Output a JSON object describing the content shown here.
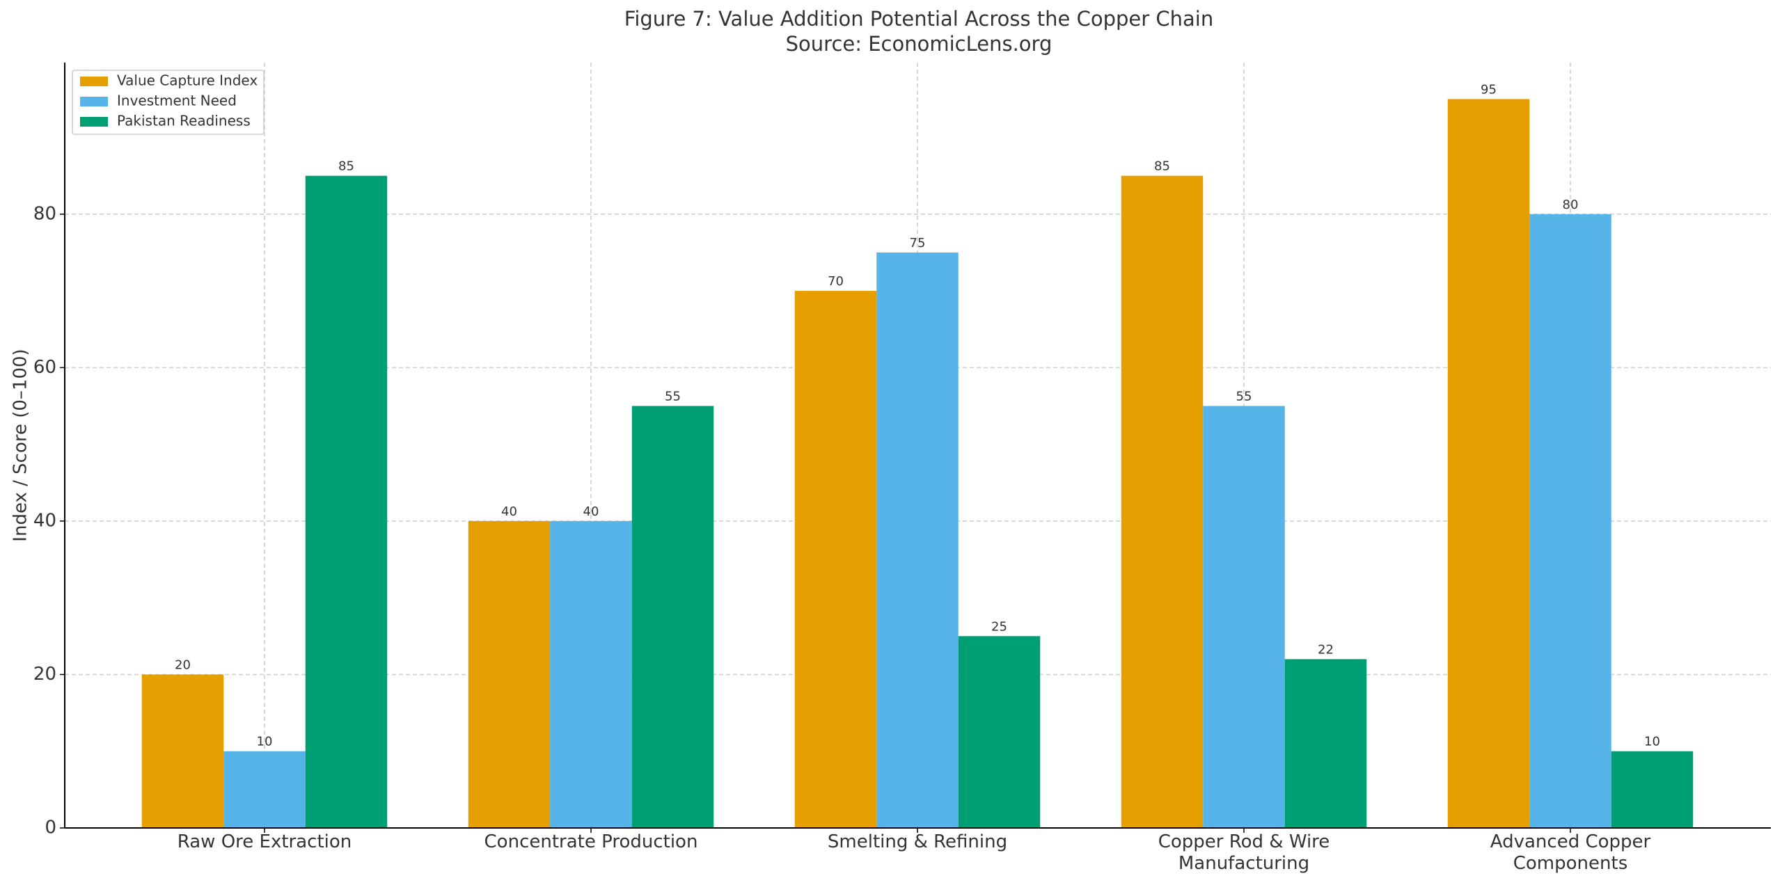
{
  "chart_data": {
    "type": "bar",
    "title": "Figure 7: Value Addition Potential Across the Copper Chain\nSource: EconomicLens.org",
    "y_label": "Index / Score (0–100)",
    "categories": [
      "Raw Ore Extraction",
      "Concentrate Production",
      "Smelting & Refining",
      "Copper Rod & Wire\nManufacturing",
      "Advanced Copper\nComponents"
    ],
    "series": [
      {
        "name": "Value Capture Index",
        "color": "#E69F00",
        "values": [
          20,
          40,
          70,
          85,
          95
        ]
      },
      {
        "name": "Investment Need",
        "color": "#56B4E9",
        "values": [
          10,
          40,
          75,
          55,
          80
        ]
      },
      {
        "name": "Pakistan Readiness",
        "color": "#009E73",
        "values": [
          85,
          55,
          25,
          22,
          10
        ]
      }
    ],
    "ylim": [
      0,
      99.75
    ],
    "yticks": [
      0,
      20,
      40,
      60,
      80
    ],
    "grid": true,
    "legend": "upper left"
  }
}
